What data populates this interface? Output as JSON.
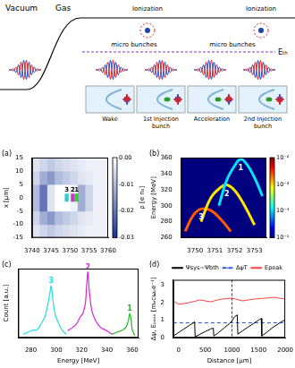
{
  "diagram": {
    "regions": [
      "Vacuum",
      "Gas"
    ],
    "ionization_labels": [
      "Ionization",
      "Ionization"
    ],
    "micro_bunch_labels": [
      "micro bunches",
      "micro bunches"
    ],
    "threshold_label": "Eₜₕ",
    "stages": [
      "Wake",
      "1st Injection bunch",
      "Acceleration",
      "2nd Injection bunch"
    ]
  },
  "chart_data": [
    {
      "type": "heatmap",
      "panel": "(a)",
      "y_label": "x [μm]",
      "xlim": [
        3740,
        3760
      ],
      "xticks": [
        3740,
        3745,
        3750,
        3755,
        3760
      ],
      "ylim": [
        -15,
        15
      ],
      "yticks": [
        -15,
        -10,
        -5,
        0,
        5,
        10,
        15
      ],
      "density": {
        "z_edges": [
          3740,
          3742,
          3744,
          3746,
          3748,
          3750,
          3752,
          3754,
          3756,
          3758,
          3760
        ],
        "x_edges": [
          -15,
          -10,
          -5,
          0,
          5,
          10,
          15
        ],
        "values": [
          [
            -0.004,
            -0.006,
            -0.008,
            -0.006,
            -0.005,
            -0.004,
            -0.003,
            -0.002,
            -0.002,
            -0.002
          ],
          [
            -0.006,
            -0.012,
            -0.015,
            -0.01,
            -0.008,
            -0.006,
            -0.004,
            -0.003,
            -0.002,
            -0.002
          ],
          [
            -0.01,
            -0.02,
            -0.004,
            0,
            0,
            -0.002,
            -0.012,
            -0.006,
            -0.002,
            -0.002
          ],
          [
            -0.01,
            -0.02,
            -0.004,
            0,
            0,
            -0.002,
            -0.012,
            -0.006,
            -0.002,
            -0.002
          ],
          [
            -0.006,
            -0.012,
            -0.015,
            -0.01,
            -0.008,
            -0.006,
            -0.004,
            -0.003,
            -0.002,
            -0.002
          ],
          [
            -0.004,
            -0.006,
            -0.008,
            -0.006,
            -0.005,
            -0.004,
            -0.003,
            -0.002,
            -0.002,
            -0.002
          ]
        ]
      },
      "colorbar": {
        "label": "ρ [e n₀]",
        "lim": [
          -0.03,
          0
        ],
        "ticks": [
          {
            "value": 0,
            "label": "0.00"
          },
          -0.01,
          -0.02,
          -0.03
        ]
      },
      "bunches": [
        {
          "name": "1",
          "color": "#33cc33",
          "z": [
            3751.2,
            3752.2
          ],
          "x": [
            -1.5,
            1.5
          ]
        },
        {
          "name": "2",
          "color": "#cc33cc",
          "z": [
            3750.2,
            3751.2
          ],
          "x": [
            -1.5,
            1.5
          ]
        },
        {
          "name": "3",
          "color": "#33cccc",
          "z": [
            3748.6,
            3749.6
          ],
          "x": [
            -1.5,
            1.5
          ]
        }
      ]
    },
    {
      "type": "scatter",
      "panel": "(b)",
      "y_label": "Energy [MeV]",
      "xlim": [
        3749.3,
        3753.6
      ],
      "xticks": [
        3750,
        3751,
        3752,
        3753
      ],
      "ylim": [
        260,
        360
      ],
      "yticks": [
        260,
        280,
        300,
        320,
        340,
        360
      ],
      "colorbar": {
        "log": true,
        "lim": [
          1e-05,
          0.01
        ],
        "ticks": [
          {
            "value": 0.01,
            "label": "10⁻²"
          },
          {
            "value": 0.001,
            "label": "10⁻³"
          },
          {
            "value": 0.0001,
            "label": "10⁻⁴"
          },
          {
            "value": 1e-05,
            "label": "10⁻⁵"
          }
        ]
      },
      "series": [
        {
          "name": "1",
          "color": "#00e5ff",
          "x": [
            3751.2,
            3751.6,
            3752.0,
            3752.3,
            3752.6,
            3753.0,
            3753.4
          ],
          "values": [
            300,
            332,
            350,
            358,
            352,
            335,
            312
          ]
        },
        {
          "name": "2",
          "color": "#ffe600",
          "x": [
            3750.3,
            3750.8,
            3751.3,
            3751.6,
            3752.0,
            3752.5,
            3753.0
          ],
          "values": [
            280,
            310,
            323,
            326,
            319,
            300,
            276
          ]
        },
        {
          "name": "3",
          "color": "#ff5a00",
          "x": [
            3749.5,
            3749.9,
            3750.3,
            3750.8,
            3751.3,
            3751.8
          ],
          "values": [
            268,
            288,
            296,
            294,
            283,
            268
          ]
        }
      ]
    },
    {
      "type": "line",
      "panel": "(c)",
      "x_label": "Energy [MeV]",
      "y_label": "Count [a.u.]",
      "xlim": [
        270,
        365
      ],
      "xticks": [
        280,
        300,
        320,
        340,
        360
      ],
      "ylim": [
        0,
        1
      ],
      "yticks": [],
      "tick_labels": "x",
      "series": [
        {
          "name": "1",
          "color": "#22bb22",
          "x": [
            344,
            348,
            351,
            353,
            355,
            357,
            358,
            359,
            360,
            362
          ],
          "values": [
            0.05,
            0.08,
            0.1,
            0.12,
            0.15,
            0.25,
            0.35,
            0.28,
            0.12,
            0.03
          ]
        },
        {
          "name": "2",
          "color": "#dd22dd",
          "x": [
            309,
            313,
            316,
            319,
            321,
            323,
            324,
            325,
            326,
            328,
            331,
            335,
            340,
            344
          ],
          "values": [
            0.1,
            0.15,
            0.2,
            0.3,
            0.35,
            0.5,
            0.75,
            0.95,
            0.7,
            0.4,
            0.25,
            0.15,
            0.1,
            0.05
          ]
        },
        {
          "name": "3",
          "color": "#22dddd",
          "x": [
            274,
            280,
            285,
            288,
            291,
            293,
            295,
            296,
            297,
            299,
            302,
            305,
            308
          ],
          "values": [
            0.05,
            0.1,
            0.12,
            0.2,
            0.3,
            0.45,
            0.65,
            0.75,
            0.6,
            0.35,
            0.2,
            0.1,
            0.05
          ]
        }
      ]
    },
    {
      "type": "line",
      "panel": "(d)",
      "x_label": "Distance [μm]",
      "y_label": "Δψ, Eₚₑₐₖ [mₑcωₚe⁻¹]",
      "xlim": [
        -100,
        2000
      ],
      "xticks": [
        0,
        500,
        1000,
        1500,
        2000
      ],
      "ylim": [
        0,
        3.3
      ],
      "yticks": [
        0,
        1,
        2,
        3
      ],
      "legend": "top",
      "vlines": [
        1000
      ],
      "series": [
        {
          "name": "Ψsys−Ψbth",
          "color": "#000000",
          "x": [
            -100,
            0,
            100,
            200,
            300,
            310,
            400,
            500,
            600,
            650,
            660,
            750,
            850,
            950,
            1000,
            1050,
            1100,
            1110,
            1200,
            1300,
            1400,
            1500,
            1550,
            1560,
            1650,
            1750,
            1850,
            1950,
            2000
          ],
          "values": [
            0.1,
            0.3,
            0.5,
            0.7,
            0.9,
            0.05,
            0.2,
            0.35,
            0.5,
            0.55,
            0.1,
            0.3,
            0.55,
            0.8,
            0.95,
            1.2,
            1.3,
            0.2,
            0.4,
            0.6,
            0.8,
            1.0,
            1.1,
            0.1,
            0.3,
            0.55,
            0.75,
            0.95,
            1.0
          ]
        },
        {
          "name": "ΔψT",
          "color": "#3355dd",
          "line_style": "dashed",
          "x": [
            -100,
            2000
          ],
          "values": [
            0.85,
            0.85
          ]
        },
        {
          "name": "Epeak",
          "color": "#ff4444",
          "x": [
            -100,
            0,
            200,
            400,
            600,
            800,
            1000,
            1200,
            1400,
            1600,
            1800,
            2000
          ],
          "values": [
            2.1,
            1.9,
            2.0,
            2.15,
            2.05,
            2.2,
            2.25,
            2.1,
            2.2,
            2.25,
            2.3,
            2.2
          ]
        }
      ]
    }
  ]
}
